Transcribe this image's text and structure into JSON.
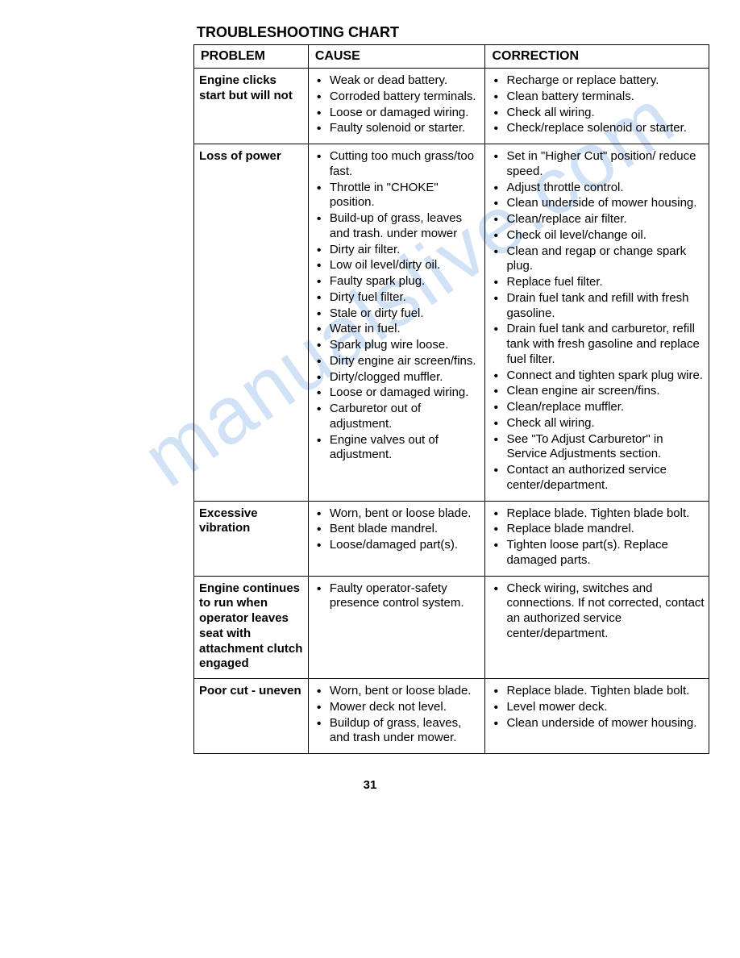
{
  "title": "TROUBLESHOOTING CHART",
  "watermark": "manualslive.com",
  "page_number": "31",
  "headers": {
    "problem": "PROBLEM",
    "cause": "CAUSE",
    "correction": "CORRECTION"
  },
  "rows": [
    {
      "problem": "Engine clicks start but will not",
      "causes": [
        "Weak or dead battery.",
        "Corroded battery terminals.",
        "Loose or damaged wiring.",
        "Faulty solenoid or starter."
      ],
      "corrections": [
        "Recharge or replace battery.",
        "Clean battery terminals.",
        "Check all wiring.",
        "Check/replace solenoid or starter."
      ]
    },
    {
      "problem": "Loss of power",
      "causes": [
        "Cutting too much grass/too fast.",
        "Throttle in \"CHOKE\" position.",
        "Build-up of grass, leaves and trash. under mower",
        "Dirty air filter.",
        "Low oil level/dirty oil.",
        "Faulty spark plug.",
        "Dirty fuel filter.",
        "Stale or dirty fuel.",
        "Water in fuel.",
        "Spark plug wire loose.",
        "Dirty engine air screen/fins.",
        "Dirty/clogged muffler.",
        "Loose or damaged wiring.",
        "Carburetor out of adjustment.",
        "Engine valves out of adjustment."
      ],
      "corrections": [
        "Set in \"Higher Cut\" position/ reduce speed.",
        "Adjust throttle control.",
        "Clean underside of mower housing.",
        "Clean/replace air filter.",
        "Check oil level/change oil.",
        "Clean and regap or change spark plug.",
        "Replace fuel filter.",
        "Drain fuel tank and refill with fresh gasoline.",
        "Drain fuel tank and carburetor, refill tank with fresh gasoline and replace fuel filter.",
        "Connect and tighten spark plug wire.",
        "Clean engine air screen/fins.",
        "Clean/replace muffler.",
        "Check all wiring.",
        "See \"To Adjust Carburetor\" in Service Adjustments section.",
        "Contact an authorized service center/department."
      ]
    },
    {
      "problem": "Excessive vibration",
      "causes": [
        "Worn, bent or loose blade.",
        "Bent blade mandrel.",
        "Loose/damaged part(s)."
      ],
      "corrections": [
        "Replace blade. Tighten blade bolt.",
        "Replace blade mandrel.",
        "Tighten loose part(s).  Replace damaged parts."
      ]
    },
    {
      "problem": "Engine continues to run when operator leaves seat with attachment clutch engaged",
      "causes": [
        "Faulty operator-safety presence control system."
      ],
      "corrections": [
        "Check wiring, switches  and connections.  If not corrected, contact an authorized service center/department."
      ]
    },
    {
      "problem": "Poor cut - uneven",
      "causes": [
        "Worn, bent or loose blade.",
        "Mower deck not level.",
        "Buildup of grass, leaves, and trash under mower."
      ],
      "corrections": [
        "Replace blade.  Tighten blade bolt.",
        "Level mower deck.",
        "Clean underside of mower housing."
      ]
    }
  ]
}
